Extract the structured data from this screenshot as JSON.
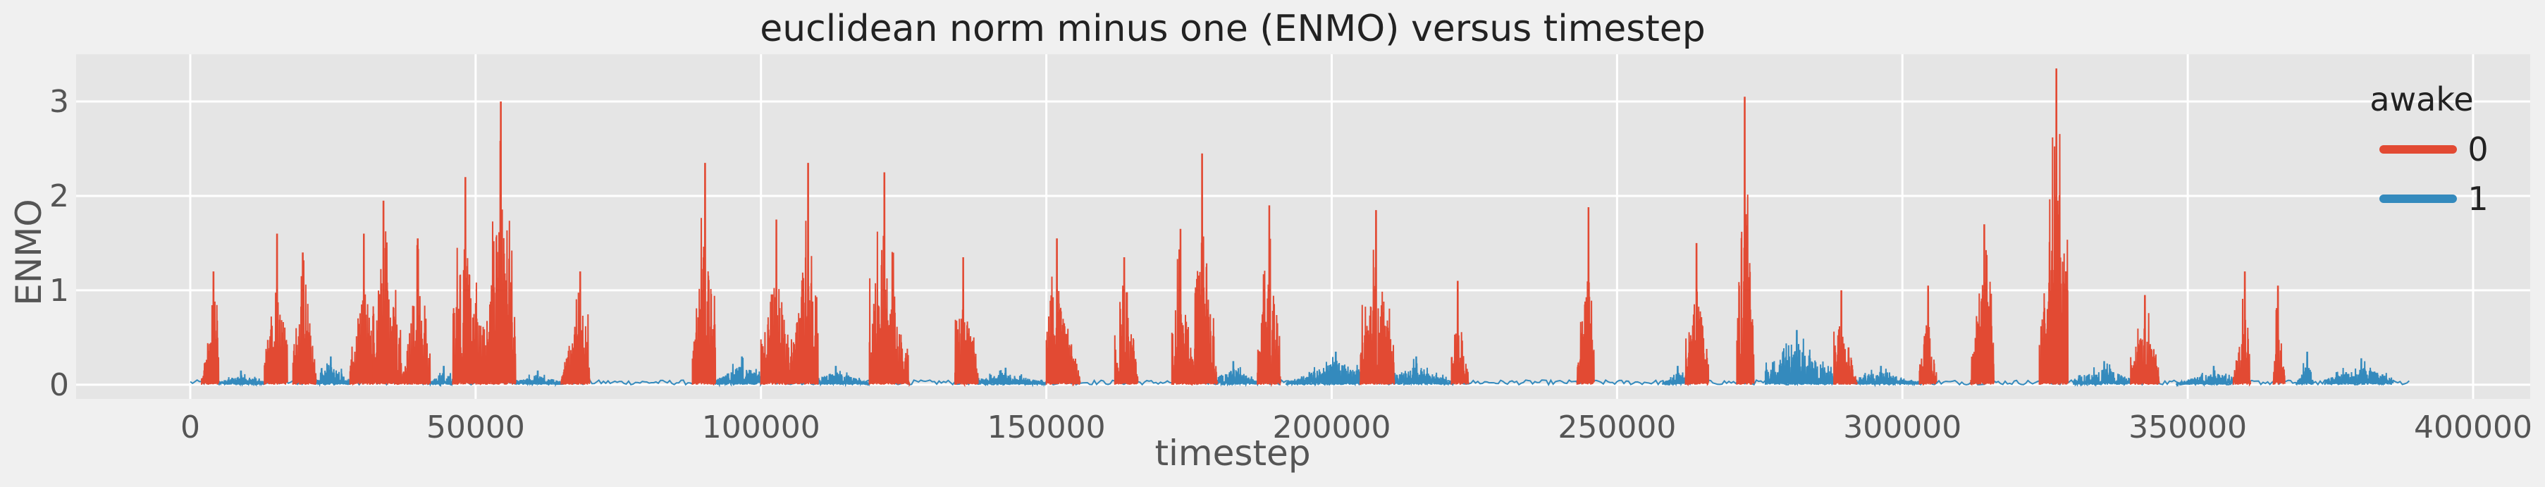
{
  "chart_data": {
    "type": "line",
    "title": "euclidean norm minus one (ENMO) versus timestep",
    "xlabel": "timestep",
    "ylabel": "ENMO",
    "xlim": [
      -20000,
      410000
    ],
    "ylim": [
      -0.15,
      3.5
    ],
    "xticks": [
      0,
      50000,
      100000,
      150000,
      200000,
      250000,
      300000,
      350000,
      400000
    ],
    "yticks": [
      0,
      1,
      2,
      3
    ],
    "grid": true,
    "legend": {
      "title": "awake",
      "placement": "top-right"
    },
    "series": [
      {
        "name": "0",
        "color": "#e24a33",
        "bursts": [
          [
            2000,
            5000,
            1.2
          ],
          [
            13000,
            17000,
            1.6
          ],
          [
            18000,
            22000,
            1.4
          ],
          [
            28000,
            32000,
            1.6
          ],
          [
            32000,
            38000,
            1.95
          ],
          [
            38000,
            42000,
            1.55
          ],
          [
            46000,
            52000,
            2.2
          ],
          [
            52000,
            57000,
            3.0
          ],
          [
            65000,
            70000,
            1.2
          ],
          [
            88000,
            92000,
            2.35
          ],
          [
            100000,
            105000,
            1.75
          ],
          [
            105000,
            110000,
            2.35
          ],
          [
            119000,
            126000,
            2.25
          ],
          [
            134000,
            138000,
            1.35
          ],
          [
            150000,
            156000,
            1.55
          ],
          [
            162000,
            166000,
            1.35
          ],
          [
            172000,
            176000,
            1.65
          ],
          [
            176000,
            180000,
            2.45
          ],
          [
            187000,
            191000,
            1.9
          ],
          [
            205000,
            211000,
            1.85
          ],
          [
            221000,
            224000,
            1.1
          ],
          [
            243000,
            246000,
            1.88
          ],
          [
            262000,
            266000,
            1.5
          ],
          [
            271000,
            274000,
            3.05
          ],
          [
            288000,
            292000,
            1.0
          ],
          [
            303000,
            306000,
            1.05
          ],
          [
            312000,
            316000,
            1.7
          ],
          [
            324000,
            329000,
            3.35
          ],
          [
            340000,
            345000,
            0.95
          ],
          [
            358000,
            361000,
            1.2
          ],
          [
            365000,
            367000,
            1.05
          ]
        ]
      },
      {
        "name": "1",
        "color": "#348abd",
        "bursts": [
          [
            5000,
            13000,
            0.15
          ],
          [
            22000,
            28000,
            0.3
          ],
          [
            42000,
            46000,
            0.2
          ],
          [
            57000,
            65000,
            0.15
          ],
          [
            92000,
            100000,
            0.3
          ],
          [
            110000,
            119000,
            0.2
          ],
          [
            138000,
            150000,
            0.18
          ],
          [
            180000,
            187000,
            0.25
          ],
          [
            192000,
            205000,
            0.35
          ],
          [
            211000,
            221000,
            0.3
          ],
          [
            258000,
            262000,
            0.2
          ],
          [
            276000,
            288000,
            0.58
          ],
          [
            292000,
            303000,
            0.2
          ],
          [
            330000,
            340000,
            0.25
          ],
          [
            348000,
            358000,
            0.2
          ],
          [
            369000,
            372000,
            0.35
          ],
          [
            374000,
            386000,
            0.28
          ]
        ]
      }
    ]
  }
}
